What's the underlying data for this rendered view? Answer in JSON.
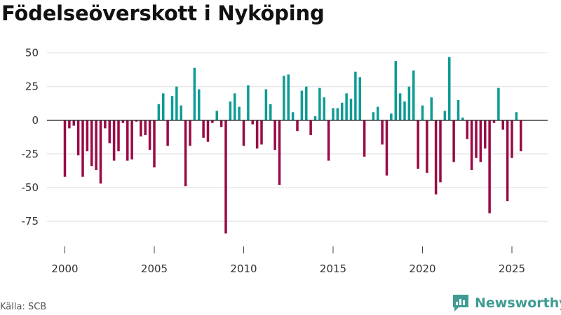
{
  "title": "Födelseöverskott i Nyköping",
  "source": "Källa: SCB",
  "brand": "Newsworthy",
  "colors": {
    "positive": "#0d9c96",
    "negative": "#9a0a45",
    "brand": "#3f9c93"
  },
  "chart_data": {
    "type": "bar",
    "title": "Födelseöverskott i Nyköping",
    "xlabel": "",
    "ylabel": "",
    "ylim": [
      -90,
      55
    ],
    "xlim": [
      1999.0,
      2027.0
    ],
    "grid": true,
    "legend": "none",
    "yticks": [
      50,
      25,
      0,
      -25,
      -50,
      -75
    ],
    "ytick_labels": [
      "50",
      "25",
      "0",
      "-25",
      "-50",
      "-75"
    ],
    "xticks": [
      2000,
      2005,
      2010,
      2015,
      2020,
      2025
    ],
    "xtick_labels": [
      "2000",
      "2005",
      "2010",
      "2015",
      "2020",
      "2025"
    ],
    "start": "2000 Q1",
    "frequency": "quarterly",
    "values": [
      -42,
      -6,
      -4,
      -26,
      -42,
      -23,
      -34,
      -37,
      -47,
      -6,
      -17,
      -30,
      -23,
      -2,
      -30,
      -29,
      -1,
      -12,
      -11,
      -22,
      -35,
      12,
      20,
      -19,
      18,
      25,
      11,
      -49,
      -19,
      39,
      23,
      -13,
      -16,
      -2,
      7,
      -5,
      -84,
      14,
      20,
      10,
      -19,
      26,
      -3,
      -21,
      -18,
      23,
      12,
      -22,
      -48,
      33,
      34,
      6,
      -8,
      22,
      25,
      -11,
      3,
      24,
      17,
      -30,
      9,
      9,
      13,
      20,
      16,
      36,
      32,
      -27,
      0,
      6,
      10,
      -18,
      -41,
      5,
      44,
      20,
      14,
      25,
      37,
      -36,
      11,
      -39,
      17,
      -55,
      -46,
      7,
      47,
      -31,
      15,
      2,
      -14,
      -37,
      -28,
      -31,
      -21,
      -69,
      -2,
      24,
      -7,
      -60,
      -28,
      6,
      -23
    ]
  }
}
